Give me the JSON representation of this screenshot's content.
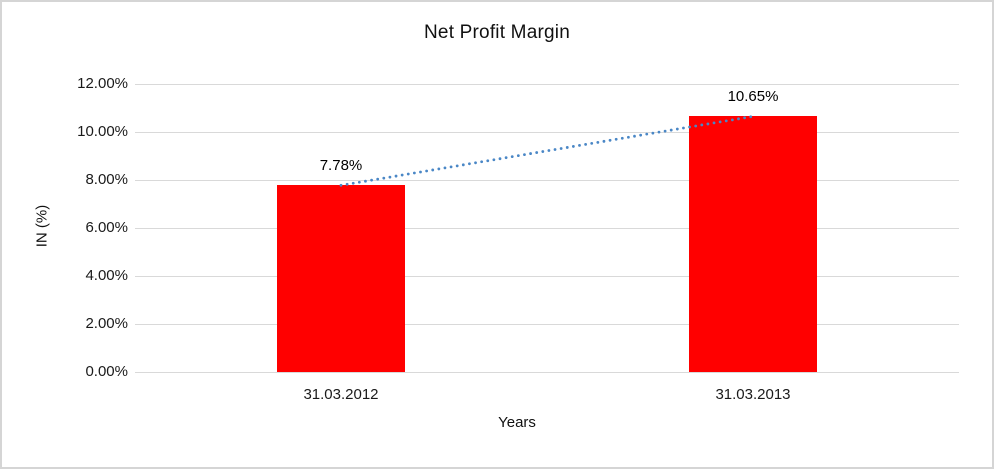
{
  "chart_data": {
    "type": "bar",
    "title": "Net Profit Margin",
    "xlabel": "Years",
    "ylabel": "IN (%)",
    "categories": [
      "31.03.2012",
      "31.03.2013"
    ],
    "values": [
      7.78,
      10.65
    ],
    "value_labels": [
      "7.78%",
      "10.65%"
    ],
    "ylim": [
      0,
      12
    ],
    "ytick_step": 2,
    "ytick_labels": [
      "0.00%",
      "2.00%",
      "4.00%",
      "6.00%",
      "8.00%",
      "10.00%",
      "12.00%"
    ],
    "grid": true,
    "legend": false,
    "bar_color": "#ff0000",
    "trendline": {
      "type": "linear",
      "style": "dotted",
      "color": "#4a87c6"
    },
    "gridline_color": "#d9d9d9",
    "text_color": "#1a1a1a",
    "frame_border_color": "#d5d5d5",
    "background_color": "#ffffff"
  }
}
